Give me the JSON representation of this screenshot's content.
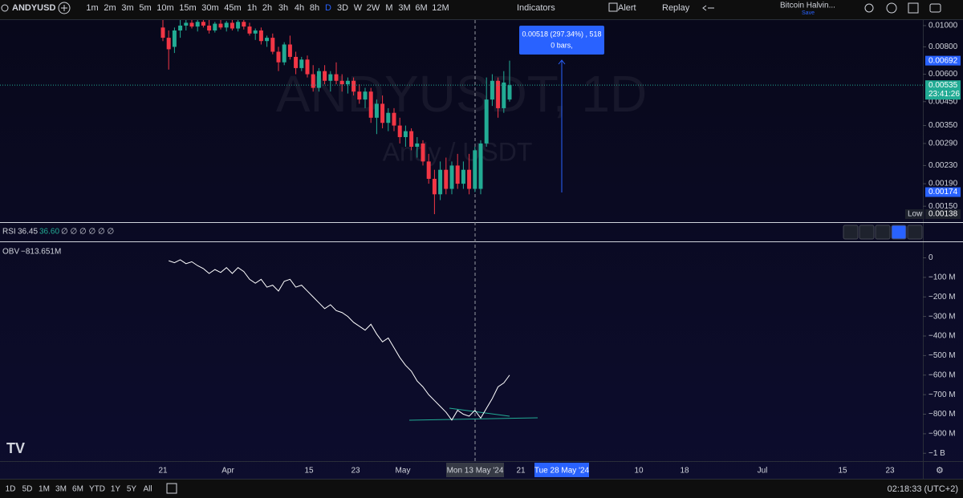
{
  "toolbar": {
    "symbol": "ANDYUSD",
    "intervals": [
      "1m",
      "2m",
      "3m",
      "5m",
      "10m",
      "15m",
      "30m",
      "45m",
      "1h",
      "2h",
      "3h",
      "4h",
      "8h",
      "D",
      "3D",
      "W",
      "2W",
      "M",
      "3M",
      "6M",
      "12M"
    ],
    "indicators": "Indicators",
    "alert": "Alert",
    "replay": "Replay",
    "layout_name": "Bitcoin Halvin...",
    "save": "Save"
  },
  "price_pane": {
    "watermark": "ANDYUSDT, 1D",
    "watermark_sub": "Andy / USDT",
    "log_scale": true,
    "ylim": [
      0.00128,
      0.0106
    ],
    "yticks": [
      {
        "value": 0.01,
        "label": "0.01000"
      },
      {
        "value": 0.008,
        "label": "0.00800"
      },
      {
        "value": 0.006,
        "label": "0.00600"
      },
      {
        "value": 0.0045,
        "label": "0.00450"
      },
      {
        "value": 0.0035,
        "label": "0.00350"
      },
      {
        "value": 0.0029,
        "label": "0.00290"
      },
      {
        "value": 0.0023,
        "label": "0.00230"
      },
      {
        "value": 0.0019,
        "label": "0.00190"
      },
      {
        "value": 0.0015,
        "label": "0.00150"
      }
    ],
    "price_labels": [
      {
        "value": 0.00692,
        "label": "0.00692",
        "color": "#2962ff"
      },
      {
        "value": 0.00535,
        "label": "0.00535",
        "color": "#22ab94"
      },
      {
        "value": 0.00174,
        "label": "0.00174",
        "color": "#2962ff"
      },
      {
        "value": 0.00138,
        "label": "0.00138",
        "color": "#1e222d"
      }
    ],
    "countdown": "23:41:26",
    "low_label": "Low",
    "up_color": "#22ab94",
    "down_color": "#f23645",
    "candles": [
      [
        0.0098,
        0.0106,
        0.0085,
        0.0088
      ],
      [
        0.0088,
        0.0095,
        0.0063,
        0.0078
      ],
      [
        0.008,
        0.0098,
        0.0075,
        0.0095
      ],
      [
        0.0095,
        0.0106,
        0.0088,
        0.01
      ],
      [
        0.01,
        0.0106,
        0.0095,
        0.0103
      ],
      [
        0.0103,
        0.0106,
        0.0097,
        0.0099
      ],
      [
        0.0099,
        0.0106,
        0.0094,
        0.0104
      ],
      [
        0.0104,
        0.0106,
        0.0098,
        0.01
      ],
      [
        0.01,
        0.0106,
        0.0092,
        0.0095
      ],
      [
        0.0095,
        0.0104,
        0.0093,
        0.0102
      ],
      [
        0.0102,
        0.0106,
        0.0096,
        0.0098
      ],
      [
        0.0098,
        0.0105,
        0.0094,
        0.0103
      ],
      [
        0.0103,
        0.0106,
        0.0095,
        0.0097
      ],
      [
        0.0097,
        0.0106,
        0.0094,
        0.0104
      ],
      [
        0.0104,
        0.0106,
        0.0096,
        0.0099
      ],
      [
        0.0099,
        0.0103,
        0.009,
        0.0092
      ],
      [
        0.0092,
        0.0097,
        0.0086,
        0.0095
      ],
      [
        0.0095,
        0.0098,
        0.0082,
        0.0085
      ],
      [
        0.0085,
        0.009,
        0.008,
        0.0088
      ],
      [
        0.0088,
        0.0092,
        0.0074,
        0.0076
      ],
      [
        0.0076,
        0.008,
        0.0062,
        0.0068
      ],
      [
        0.0068,
        0.0084,
        0.0066,
        0.0082
      ],
      [
        0.0082,
        0.009,
        0.007,
        0.0072
      ],
      [
        0.0072,
        0.0076,
        0.006,
        0.0064
      ],
      [
        0.0064,
        0.0072,
        0.0062,
        0.007
      ],
      [
        0.007,
        0.0073,
        0.0058,
        0.006
      ],
      [
        0.006,
        0.0066,
        0.005,
        0.0052
      ],
      [
        0.0052,
        0.0064,
        0.005,
        0.0062
      ],
      [
        0.0062,
        0.0066,
        0.0054,
        0.0056
      ],
      [
        0.0056,
        0.0062,
        0.005,
        0.006
      ],
      [
        0.006,
        0.0068,
        0.0054,
        0.0056
      ],
      [
        0.0056,
        0.006,
        0.005,
        0.0054
      ],
      [
        0.0054,
        0.0058,
        0.0049,
        0.0056
      ],
      [
        0.0056,
        0.0058,
        0.0048,
        0.005
      ],
      [
        0.005,
        0.0054,
        0.0044,
        0.0046
      ],
      [
        0.0046,
        0.0052,
        0.0042,
        0.005
      ],
      [
        0.005,
        0.0052,
        0.0036,
        0.0038
      ],
      [
        0.0038,
        0.0046,
        0.0032,
        0.0044
      ],
      [
        0.0044,
        0.0048,
        0.0034,
        0.0036
      ],
      [
        0.0036,
        0.0042,
        0.0033,
        0.004
      ],
      [
        0.004,
        0.0042,
        0.0033,
        0.0035
      ],
      [
        0.0035,
        0.0038,
        0.0029,
        0.0031
      ],
      [
        0.0031,
        0.0035,
        0.0028,
        0.0033
      ],
      [
        0.0033,
        0.0034,
        0.0027,
        0.0028
      ],
      [
        0.0028,
        0.0031,
        0.0025,
        0.0029
      ],
      [
        0.0029,
        0.003,
        0.0023,
        0.0024
      ],
      [
        0.0024,
        0.0026,
        0.0019,
        0.002
      ],
      [
        0.002,
        0.0022,
        0.00138,
        0.0017
      ],
      [
        0.0017,
        0.0024,
        0.0016,
        0.0022
      ],
      [
        0.0022,
        0.0025,
        0.0017,
        0.0018
      ],
      [
        0.0018,
        0.0024,
        0.0017,
        0.0023
      ],
      [
        0.0023,
        0.0026,
        0.0018,
        0.0019
      ],
      [
        0.0019,
        0.0024,
        0.0018,
        0.0022
      ],
      [
        0.0022,
        0.0026,
        0.0017,
        0.0018
      ],
      [
        0.0018,
        0.0028,
        0.00174,
        0.0027
      ],
      [
        0.0018,
        0.003,
        0.0017,
        0.0029
      ],
      [
        0.0029,
        0.0058,
        0.0028,
        0.0046
      ],
      [
        0.0046,
        0.006,
        0.0043,
        0.0056
      ],
      [
        0.0056,
        0.0058,
        0.0038,
        0.0042
      ],
      [
        0.0042,
        0.0062,
        0.004,
        0.0055
      ],
      [
        0.0046,
        0.00692,
        0.0045,
        0.00535
      ]
    ]
  },
  "measure": {
    "line1": "0.00518 (297.34%) , 518",
    "line2": "0 bars,"
  },
  "rsi_pane": {
    "name": "RSI",
    "value1": "36.45",
    "value2": "36.60",
    "extra": "∅ ∅ ∅ ∅ ∅ ∅"
  },
  "obv_pane": {
    "name": "OBV",
    "current": "−813.651M",
    "ylim": [
      -1040,
      80
    ],
    "color": "#ffffff",
    "yticks": [
      0,
      {
        "value": -100,
        "label": "−100 M"
      },
      {
        "value": -200,
        "label": "−200 M"
      },
      {
        "value": -300,
        "label": "−300 M"
      },
      {
        "value": -400,
        "label": "−400 M"
      },
      {
        "value": -500,
        "label": "−500 M"
      },
      {
        "value": -600,
        "label": "−600 M"
      },
      {
        "value": -700,
        "label": "−700 M"
      },
      {
        "value": -800,
        "label": "−800 M"
      },
      {
        "value": -900,
        "label": "−900 M"
      },
      {
        "value": -1000,
        "label": "−1 B"
      }
    ],
    "values": [
      null,
      -15,
      -25,
      -10,
      -30,
      -20,
      -40,
      -55,
      -80,
      -60,
      -75,
      -50,
      -80,
      -50,
      -70,
      -110,
      -130,
      -110,
      -150,
      -140,
      -170,
      -120,
      -110,
      -150,
      -140,
      -170,
      -200,
      -230,
      -260,
      -240,
      -270,
      -280,
      -300,
      -330,
      -350,
      -370,
      -340,
      -390,
      -430,
      -410,
      -460,
      -510,
      -550,
      -580,
      -630,
      -660,
      -700,
      -730,
      -760,
      -790,
      -830,
      -780,
      -800,
      -810,
      -780,
      -820,
      -770,
      -720,
      -660,
      -640,
      -600
    ]
  },
  "time_axis": {
    "labels": [
      "21",
      "Apr",
      "15",
      "23",
      "May",
      "21",
      "10",
      "18",
      "Jul",
      "15",
      "23"
    ],
    "crosshair": "Mon 13 May '24",
    "measure_end": "Tue 28 May '24"
  },
  "bottom_bar": {
    "ranges": [
      "1D",
      "5D",
      "1M",
      "3M",
      "6M",
      "YTD",
      "1Y",
      "5Y",
      "All"
    ],
    "clock": "02:18:33 (UTC+2)"
  }
}
